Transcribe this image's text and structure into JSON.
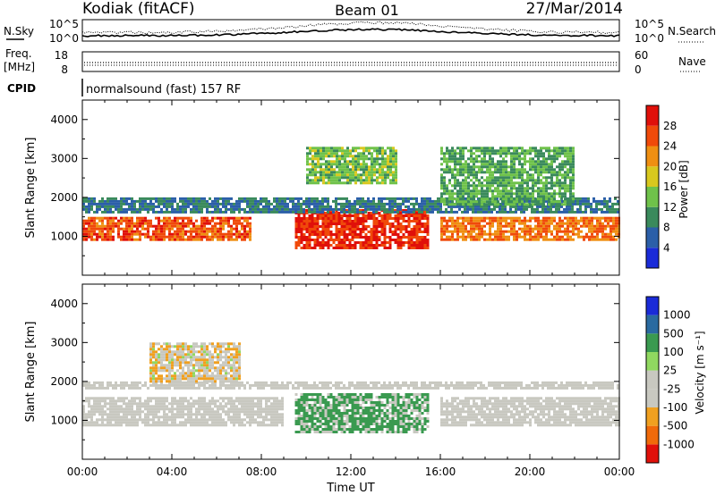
{
  "header": {
    "station": "Kodiak (fitACF)",
    "beam": "Beam 01",
    "date": "27/Mar/2014"
  },
  "noise_panel": {
    "left_label": "N.Sky",
    "right_label": "N.Search",
    "left_ticks": [
      "10^5",
      "10^0"
    ],
    "right_ticks": [
      "10^5",
      "10^0"
    ]
  },
  "freq_panel": {
    "left_label_1": "Freq.",
    "left_label_2": "[MHz]",
    "right_label": "Nave",
    "left_ticks": [
      "18",
      "8"
    ],
    "right_ticks": [
      "60",
      "0"
    ]
  },
  "cpid_panel": {
    "label": "CPID",
    "text": "normalsound (fast) 157 RF"
  },
  "colors": {
    "power": [
      "#1a2bd8",
      "#2b5fa8",
      "#3a8a5c",
      "#6fc24a",
      "#d8c81e",
      "#ef8f12",
      "#f04a0a",
      "#e0100a"
    ],
    "velocity": [
      "#e0100a",
      "#f06a0a",
      "#f0a020",
      "#c8c8c0",
      "#c8c8c0",
      "#90d860",
      "#3a9a50",
      "#2a6aa0",
      "#1a2bd8"
    ],
    "gs": "#c8c8c0"
  },
  "chart_data": [
    {
      "type": "heatmap",
      "title": "",
      "xlabel": "Time UT",
      "ylabel": "Slant Range [km]",
      "xlim": [
        "00:00",
        "00:00"
      ],
      "ylim": [
        0,
        4500
      ],
      "x_ticks": [
        "00:00",
        "04:00",
        "08:00",
        "12:00",
        "16:00",
        "20:00",
        "00:00"
      ],
      "y_ticks": [
        1000,
        2000,
        3000,
        4000
      ],
      "colorbar": {
        "label": "Power [dB]",
        "ticks": [
          4,
          8,
          12,
          16,
          20,
          24,
          28
        ],
        "range": [
          0,
          32
        ]
      },
      "features": [
        {
          "t_start": 0,
          "t_end": 7.5,
          "range_start": 900,
          "range_end": 1500,
          "value": 26
        },
        {
          "t_start": 9.5,
          "t_end": 15.5,
          "range_start": 700,
          "range_end": 1700,
          "value": 28
        },
        {
          "t_start": 16,
          "t_end": 24,
          "range_start": 900,
          "range_end": 1500,
          "value": 24
        },
        {
          "t_start": 0,
          "t_end": 24,
          "range_start": 1600,
          "range_end": 2000,
          "value": 8
        },
        {
          "t_start": 10,
          "t_end": 14,
          "range_start": 2400,
          "range_end": 3300,
          "value": 14
        },
        {
          "t_start": 16,
          "t_end": 22,
          "range_start": 1800,
          "range_end": 3300,
          "value": 12
        }
      ]
    },
    {
      "type": "heatmap",
      "title": "",
      "xlabel": "Time UT",
      "ylabel": "Slant Range [km]",
      "xlim": [
        "00:00",
        "00:00"
      ],
      "ylim": [
        0,
        4500
      ],
      "x_ticks": [
        "00:00",
        "04:00",
        "08:00",
        "12:00",
        "16:00",
        "20:00",
        "00:00"
      ],
      "y_ticks": [
        1000,
        2000,
        3000,
        4000
      ],
      "colorbar": {
        "label": "Velocity [m s⁻¹]",
        "ticks": [
          1000,
          500,
          100,
          25,
          -25,
          -100,
          -500,
          -1000
        ]
      },
      "features": [
        {
          "t_start": 0,
          "t_end": 9,
          "range_start": 900,
          "range_end": 1600,
          "value": 0
        },
        {
          "t_start": 9.5,
          "t_end": 15.5,
          "range_start": 700,
          "range_end": 1700,
          "value": 300
        },
        {
          "t_start": 16,
          "t_end": 24,
          "range_start": 900,
          "range_end": 1600,
          "value": 0
        },
        {
          "t_start": 0,
          "t_end": 24,
          "range_start": 1800,
          "range_end": 2000,
          "value": 0
        },
        {
          "t_start": 3,
          "t_end": 7,
          "range_start": 2000,
          "range_end": 3000,
          "value": -100
        }
      ]
    }
  ]
}
